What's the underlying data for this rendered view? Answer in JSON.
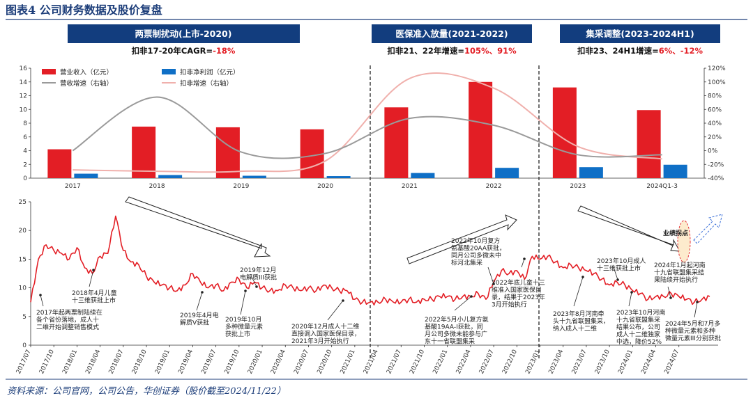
{
  "header": {
    "title": "图表4  公司财务数据及股价复盘",
    "source": "资料来源：公司官网，公司公告，华创证券（股价截至2024/11/22）"
  },
  "phases": [
    {
      "band": "两票制扰动(上市-2020)",
      "sub_prefix": "扣非17-20年CAGR=",
      "sub_value": "-18%"
    },
    {
      "band": "医保准入放量(2021-2022)",
      "sub_prefix": "扣非21、22年增速=",
      "sub_value": "105%、91%"
    },
    {
      "band": "集采调整(2023-2024H1)",
      "sub_prefix": "扣非23、24H1增速=",
      "sub_value": "6%、-12%"
    }
  ],
  "colors": {
    "revenue": "#e31e25",
    "profit": "#0f6fc6",
    "rev_growth": "#9a9a9a",
    "profit_growth": "#f0b0ac",
    "price": "#e31e25",
    "band": "#123d7e",
    "title": "#1d3e7a"
  },
  "chart_data": [
    {
      "type": "bar",
      "categories": [
        "2017",
        "2018",
        "2019",
        "2020",
        "2021",
        "2022",
        "2023",
        "2024Q1-3"
      ],
      "series": [
        {
          "name": "营业收入（亿元）",
          "axis": "left",
          "values": [
            4.2,
            7.5,
            7.4,
            7.1,
            10.3,
            14.0,
            13.2,
            9.9
          ]
        },
        {
          "name": "扣非净利润（亿元）",
          "axis": "left",
          "values": [
            0.65,
            0.45,
            0.35,
            0.3,
            0.75,
            1.5,
            1.6,
            1.95
          ]
        },
        {
          "name": "营收增速（右轴）",
          "type": "line",
          "axis": "right",
          "values": [
            0,
            78,
            -2,
            -4,
            47,
            37,
            -6,
            -6
          ]
        },
        {
          "name": "扣非增速（右轴）",
          "type": "line",
          "axis": "right",
          "values": [
            -28,
            -30,
            -30,
            -15,
            105,
            91,
            6,
            -12
          ]
        }
      ],
      "ylim": [
        0,
        16
      ],
      "yticks": [
        "0",
        "2",
        "4",
        "6",
        "8",
        "10",
        "12",
        "14",
        "16"
      ],
      "y2lim": [
        -40,
        120
      ],
      "y2ticks": [
        "-40%",
        "-20%",
        "0%",
        "20%",
        "40%",
        "60%",
        "80%",
        "100%",
        "120%"
      ],
      "legend": "top-left"
    },
    {
      "type": "line",
      "series_name": "股价",
      "ylim": [
        0,
        25
      ],
      "yticks": [
        "0",
        "5",
        "10",
        "15",
        "20",
        "25"
      ],
      "xticks": [
        "2017/07",
        "2017/10",
        "2018/01",
        "2018/04",
        "2018/07",
        "2018/10",
        "2019/01",
        "2019/04",
        "2019/07",
        "2019/10",
        "2020/01",
        "2020/04",
        "2020/07",
        "2020/10",
        "2021/01",
        "2021/04",
        "2021/07",
        "2021/10",
        "2022/01",
        "2022/04",
        "2022/07",
        "2022/10",
        "2023/01",
        "2023/04",
        "2023/07",
        "2023/10",
        "2024/01",
        "2024/04",
        "2024/07"
      ],
      "x": [
        "2017/07",
        "2017/08",
        "2017/09",
        "2017/10",
        "2017/11",
        "2017/12",
        "2018/01",
        "2018/02",
        "2018/03",
        "2018/04",
        "2018/05",
        "2018/06",
        "2018/07",
        "2018/08",
        "2018/09",
        "2018/10",
        "2018/11",
        "2018/12",
        "2019/01",
        "2019/02",
        "2019/03",
        "2019/04",
        "2019/05",
        "2019/06",
        "2019/07",
        "2019/08",
        "2019/09",
        "2019/10",
        "2019/11",
        "2019/12",
        "2020/01",
        "2020/02",
        "2020/03",
        "2020/04",
        "2020/05",
        "2020/06",
        "2020/07",
        "2020/08",
        "2020/09",
        "2020/10",
        "2020/11",
        "2020/12",
        "2021/01",
        "2021/02",
        "2021/03",
        "2021/04",
        "2021/05",
        "2021/06",
        "2021/07",
        "2021/08",
        "2021/09",
        "2021/10",
        "2021/11",
        "2021/12",
        "2022/01",
        "2022/02",
        "2022/03",
        "2022/04",
        "2022/05",
        "2022/06",
        "2022/07",
        "2022/08",
        "2022/09",
        "2022/10",
        "2022/11",
        "2022/12",
        "2023/01",
        "2023/02",
        "2023/03",
        "2023/04",
        "2023/05",
        "2023/06",
        "2023/07",
        "2023/08",
        "2023/09",
        "2023/10",
        "2023/11",
        "2023/12",
        "2024/01",
        "2024/02",
        "2024/03",
        "2024/04",
        "2024/05",
        "2024/06",
        "2024/07",
        "2024/08",
        "2024/09",
        "2024/10",
        "2024/11"
      ],
      "values": [
        7.5,
        15.0,
        17.5,
        16.5,
        16.0,
        15.0,
        17.0,
        13.5,
        12.5,
        15.5,
        16.0,
        22.5,
        16.5,
        14.5,
        14.0,
        12.0,
        11.0,
        10.5,
        10.0,
        9.5,
        10.5,
        12.5,
        11.0,
        10.0,
        10.5,
        9.5,
        11.0,
        11.5,
        10.0,
        11.0,
        10.0,
        9.5,
        9.5,
        10.5,
        10.0,
        9.5,
        10.0,
        9.5,
        10.5,
        10.0,
        9.5,
        9.5,
        8.0,
        7.5,
        7.5,
        7.5,
        8.0,
        7.5,
        7.5,
        8.0,
        7.5,
        8.0,
        8.0,
        8.5,
        8.5,
        8.0,
        8.5,
        8.5,
        9.0,
        8.0,
        11.0,
        13.0,
        12.5,
        13.0,
        11.5,
        15.5,
        15.0,
        15.5,
        14.5,
        13.5,
        14.0,
        13.5,
        13.0,
        12.5,
        11.5,
        10.5,
        11.0,
        10.5,
        9.5,
        9.0,
        8.0,
        8.5,
        8.5,
        9.0,
        8.5,
        8.0,
        7.5,
        8.0,
        8.5
      ]
    }
  ],
  "annotations": [
    {
      "text": [
        "2017年起两票制陆续在",
        "各个省份落地，成人十",
        "二维开始调整销售模式"
      ]
    },
    {
      "text": [
        "2018年4月儿童",
        "十三维获批上市"
      ]
    },
    {
      "text": [
        "2019年4月电",
        "解质V获批"
      ]
    },
    {
      "text": [
        "2019年10月",
        "多种微量元素",
        "获批上市"
      ]
    },
    {
      "text": [
        "2019年12月",
        "电解质III获批"
      ]
    },
    {
      "text": [
        "2020年12月成人十二维",
        "直接调入国家医保目录，",
        "2021年3月开始执行"
      ]
    },
    {
      "text": [
        "2022年5月小儿复方氨",
        "基酸19AA-I获批，同",
        "月公司多微未能参与广",
        "东十一省联盟集采"
      ]
    },
    {
      "text": [
        "2022年10月复方",
        "氨基酸20AA获批，",
        "同月公司多微未中",
        "标河北集采"
      ]
    },
    {
      "text": [
        "2022年底儿童十三",
        "维准入国家医保目",
        "录，结果于2023年",
        "3月开始执行"
      ]
    },
    {
      "text": [
        "2023年8月河南牵",
        "头十九省联盟集采，",
        "纳入成人十二维"
      ]
    },
    {
      "text": [
        "2023年10月成人",
        "十三维获批上市"
      ]
    },
    {
      "text": [
        "2023年10月河南",
        "十九省联盟集采",
        "结果公布，公司",
        "成人十二维独家",
        "中选，降价52%"
      ]
    },
    {
      "text": [
        "2024年1月起河南",
        "十九省联盟集采结",
        "果陆续开始执行"
      ]
    },
    {
      "text": [
        "2024年5月和7月多",
        "种微量元素和多种",
        "微量元素III分别获批"
      ]
    },
    {
      "text": [
        "业绩拐点"
      ]
    }
  ]
}
